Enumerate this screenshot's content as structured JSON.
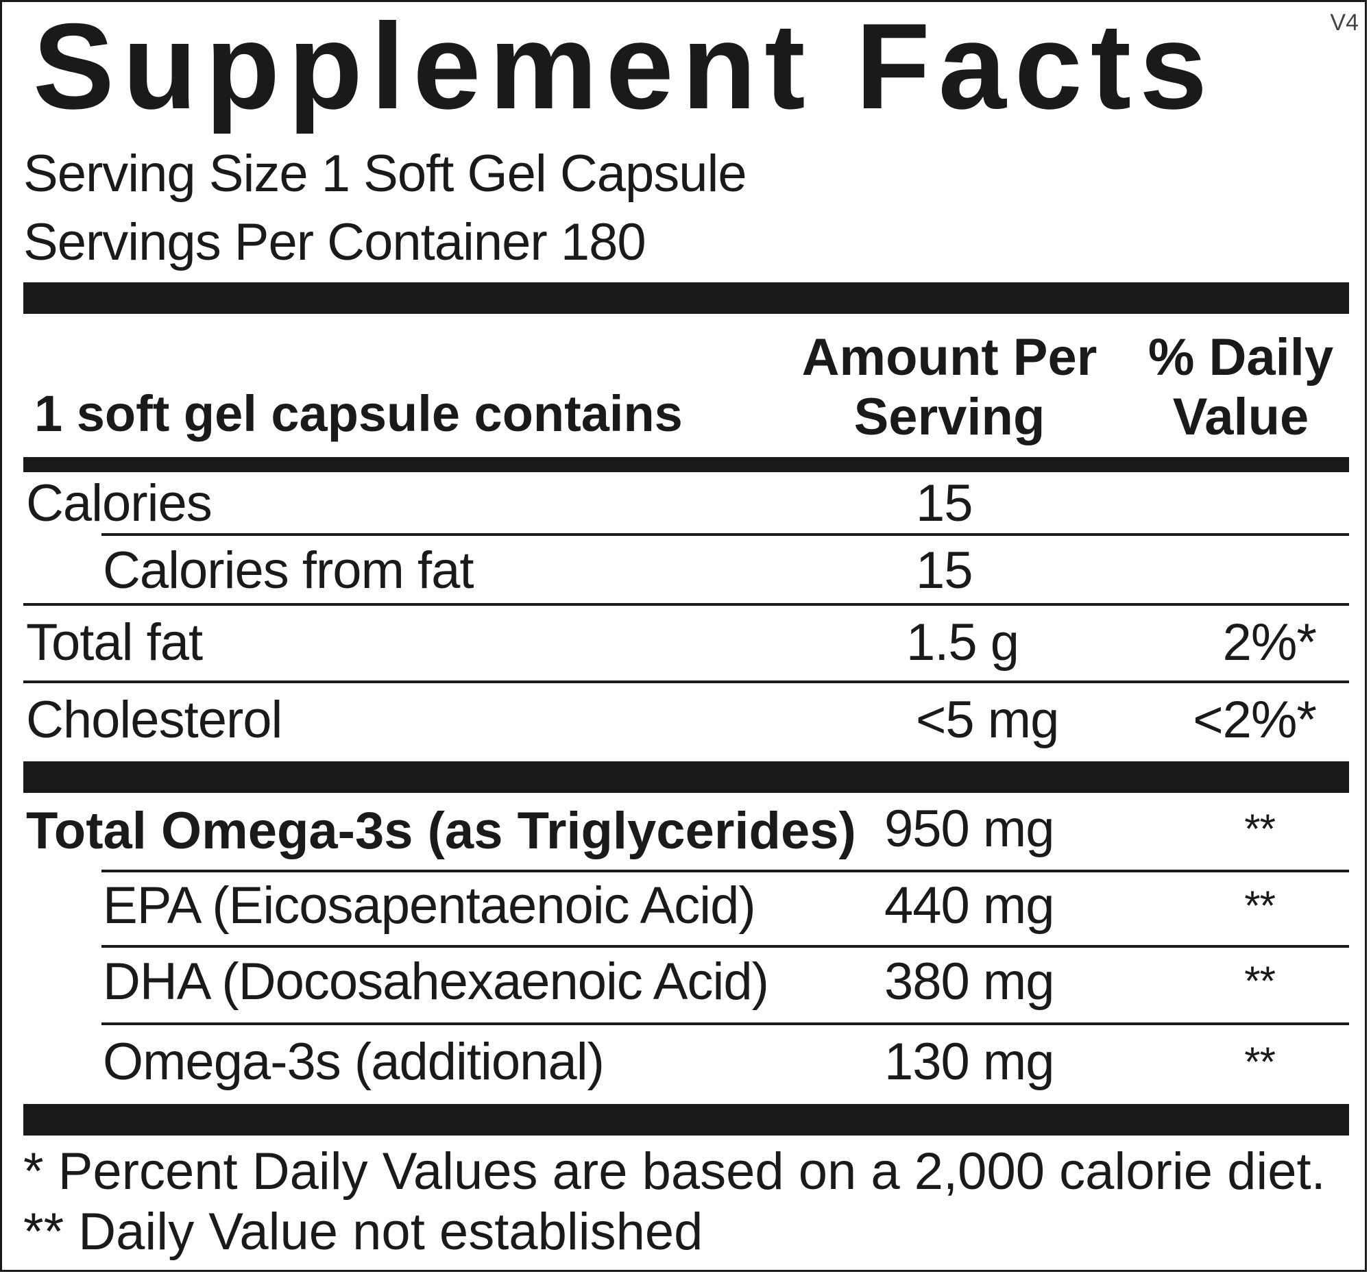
{
  "version": "V4",
  "title": "Supplement Facts",
  "serving_size": "Serving Size 1 Soft Gel Capsule",
  "servings_per_container": "Servings Per Container 180",
  "header": {
    "contains": "1 soft gel capsule contains",
    "amount_line1": "Amount Per",
    "amount_line2": "Serving",
    "dv_line1": "% Daily",
    "dv_line2": "Value"
  },
  "rows": [
    {
      "name": "Calories",
      "amount": "15",
      "dv": ""
    },
    {
      "name": "Calories from fat",
      "amount": "15",
      "dv": ""
    },
    {
      "name": "Total fat",
      "amount": "1.5 g",
      "dv": "2%*"
    },
    {
      "name": "Cholesterol",
      "amount": "<5 mg",
      "dv": "<2%*"
    },
    {
      "name": "Total Omega-3s (as Triglycerides)",
      "amount": "950 mg",
      "dv": "**"
    },
    {
      "name": "EPA (Eicosapentaenoic Acid)",
      "amount": "440 mg",
      "dv": "**"
    },
    {
      "name": "DHA (Docosahexaenoic Acid)",
      "amount": "380 mg",
      "dv": "**"
    },
    {
      "name": "Omega-3s (additional)",
      "amount": "130 mg",
      "dv": "**"
    }
  ],
  "footnotes": [
    "* Percent Daily Values are based on a 2,000 calorie diet.",
    "** Daily Value not established"
  ]
}
